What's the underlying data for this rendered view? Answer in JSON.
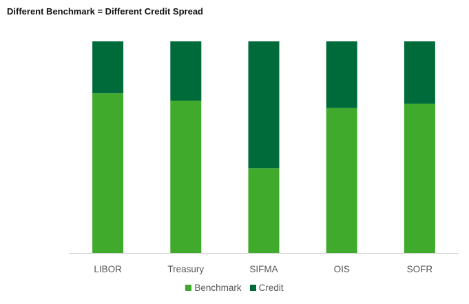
{
  "chart_data": {
    "type": "bar",
    "stacked": true,
    "title": "Different Benchmark = Different Credit Spread",
    "xlabel": "",
    "ylabel": "",
    "categories": [
      "LIBOR",
      "Treasury",
      "SIFMA",
      "OIS",
      "SOFR"
    ],
    "series": [
      {
        "name": "Benchmark",
        "color": "#3faa2c",
        "values": [
          75.5,
          72,
          40,
          68.5,
          70.5
        ]
      },
      {
        "name": "Credit",
        "color": "#006b3a",
        "values": [
          24.5,
          28,
          60,
          31.5,
          29.5
        ]
      }
    ],
    "ylim": [
      0,
      100
    ],
    "grid": false,
    "y_axis_visible": false,
    "legend": "bottom-center"
  }
}
